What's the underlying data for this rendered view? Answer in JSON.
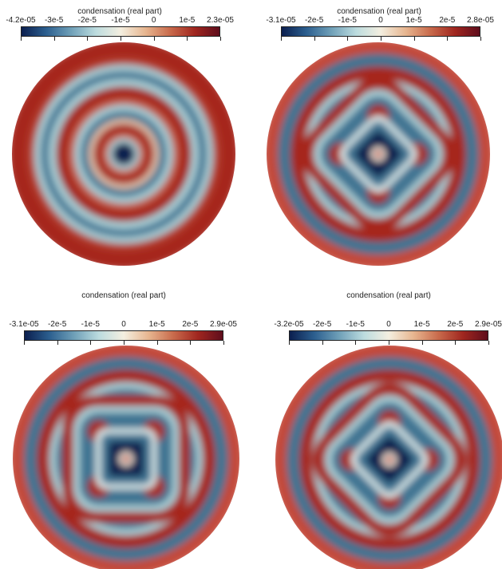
{
  "colormap": {
    "name": "Cool to Warm (Extended)",
    "stops": [
      "#0b1f4f",
      "#2c5f8f",
      "#6fa0b8",
      "#bcdcdf",
      "#f4efe0",
      "#e7b690",
      "#c96b4c",
      "#a0261f",
      "#5e0d1c"
    ]
  },
  "panels": [
    {
      "id": "top-left",
      "colorbar": {
        "title": "condensation (real part)",
        "ticks": [
          "-4.2e-05",
          "-3e-5",
          "-2e-5",
          "-1e-5",
          "0",
          "1e-5",
          "2.3e-05"
        ]
      },
      "pattern": {
        "type": "rings",
        "outer_rings": 4,
        "center": "dark-blue"
      }
    },
    {
      "id": "top-right",
      "colorbar": {
        "title": "condensation (real part)",
        "ticks": [
          "-3.1e-05",
          "-2e-5",
          "-1e-5",
          "0",
          "1e-5",
          "2e-5",
          "2.8e-05"
        ]
      },
      "pattern": {
        "type": "diamond",
        "center": "red-dot"
      }
    },
    {
      "id": "bottom-left",
      "colorbar": {
        "title": "condensation (real part)",
        "ticks": [
          "-3.1e-05",
          "-2e-5",
          "-1e-5",
          "0",
          "1e-5",
          "2e-5",
          "2.9e-05"
        ]
      },
      "pattern": {
        "type": "square",
        "center": "red-dot"
      }
    },
    {
      "id": "bottom-right",
      "colorbar": {
        "title": "condensation (real part)",
        "ticks": [
          "-3.2e-05",
          "-2e-5",
          "-1e-5",
          "0",
          "1e-5",
          "2e-5",
          "2.9e-05"
        ]
      },
      "pattern": {
        "type": "diamond",
        "center": "red-dot"
      }
    }
  ]
}
